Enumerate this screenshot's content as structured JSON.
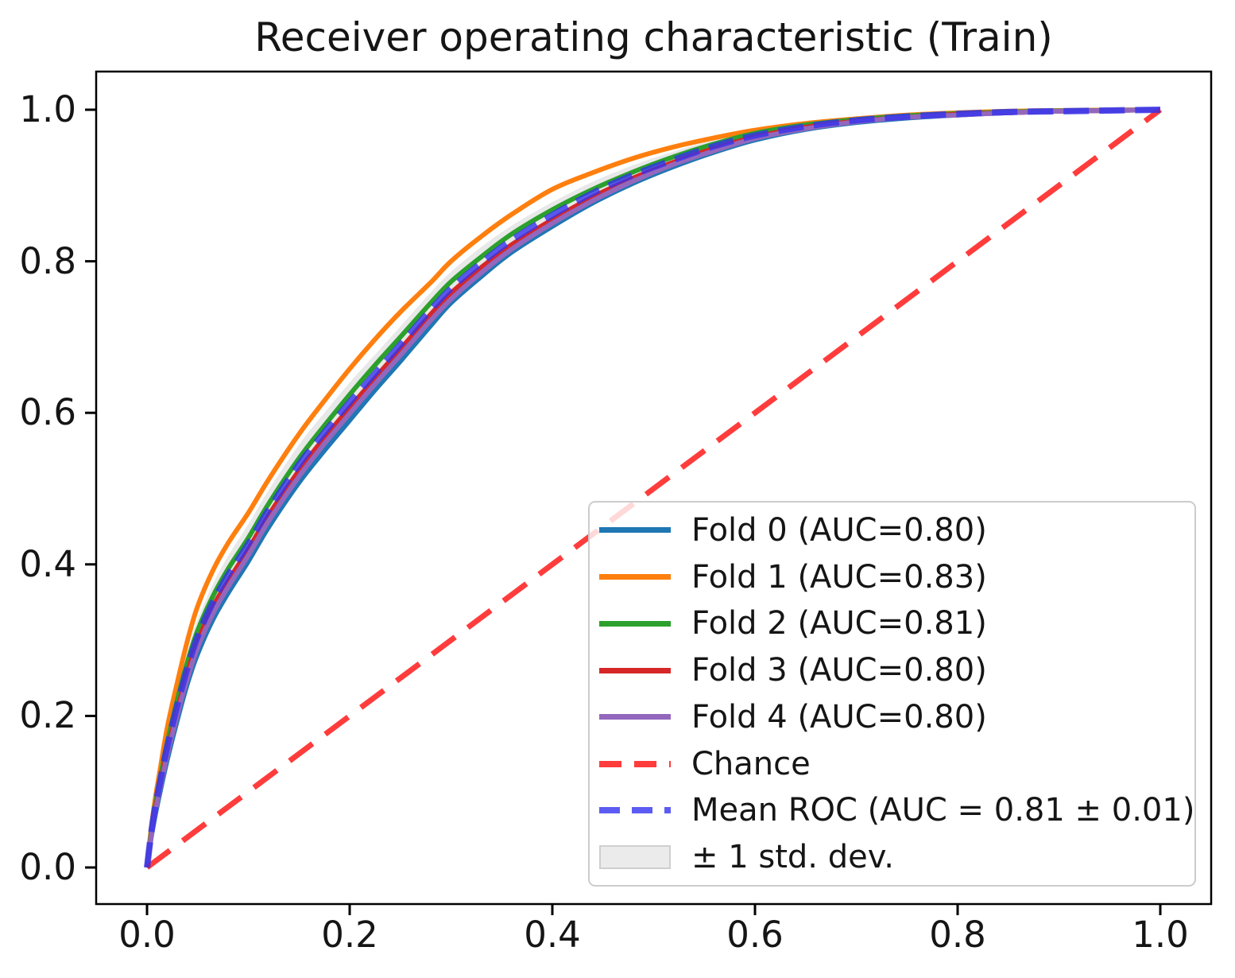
{
  "title": "Receiver operating characteristic (Train)",
  "axes": {
    "x_tick_values": [
      0.0,
      0.2,
      0.4,
      0.6,
      0.8,
      1.0
    ],
    "x_tick_labels": [
      "0.0",
      "0.2",
      "0.4",
      "0.6",
      "0.8",
      "1.0"
    ],
    "y_tick_values": [
      0.0,
      0.2,
      0.4,
      0.6,
      0.8,
      1.0
    ],
    "y_tick_labels": [
      "0.0",
      "0.2",
      "0.4",
      "0.6",
      "0.8",
      "1.0"
    ],
    "grid": false
  },
  "chart_data": {
    "type": "line",
    "title": "Receiver operating characteristic (Train)",
    "xlim": [
      -0.05,
      1.05
    ],
    "ylim": [
      -0.05,
      1.05
    ],
    "legend_position": "lower right",
    "x": [
      0,
      0.004,
      0.008,
      0.013,
      0.02,
      0.03,
      0.04,
      0.05,
      0.065,
      0.08,
      0.1,
      0.12,
      0.15,
      0.175,
      0.2,
      0.225,
      0.25,
      0.28,
      0.3,
      0.33,
      0.36,
      0.4,
      0.44,
      0.48,
      0.52,
      0.56,
      0.6,
      0.65,
      0.7,
      0.75,
      0.8,
      0.85,
      0.9,
      0.95,
      1.0
    ],
    "series": [
      {
        "name": "Fold 0 (AUC=0.80)",
        "auc": 0.8,
        "color": "#1f77b4",
        "style": "solid",
        "lw": 6,
        "opacity": 1,
        "y": [
          0,
          0.038,
          0.068,
          0.1,
          0.142,
          0.195,
          0.243,
          0.282,
          0.327,
          0.362,
          0.404,
          0.449,
          0.508,
          0.55,
          0.59,
          0.63,
          0.668,
          0.715,
          0.745,
          0.78,
          0.812,
          0.846,
          0.877,
          0.903,
          0.925,
          0.944,
          0.96,
          0.974,
          0.983,
          0.989,
          0.993,
          0.996,
          0.998,
          0.999,
          1.0
        ]
      },
      {
        "name": "Fold 1 (AUC=0.83)",
        "auc": 0.83,
        "color": "#ff7f0e",
        "style": "solid",
        "lw": 6,
        "opacity": 1,
        "y": [
          0,
          0.05,
          0.09,
          0.13,
          0.185,
          0.245,
          0.3,
          0.345,
          0.392,
          0.428,
          0.468,
          0.512,
          0.572,
          0.616,
          0.658,
          0.697,
          0.733,
          0.772,
          0.8,
          0.833,
          0.862,
          0.895,
          0.917,
          0.936,
          0.951,
          0.963,
          0.973,
          0.982,
          0.988,
          0.993,
          0.996,
          0.998,
          0.999,
          0.9995,
          1.0
        ]
      },
      {
        "name": "Fold 2 (AUC=0.81)",
        "auc": 0.81,
        "color": "#2ca02c",
        "style": "solid",
        "lw": 6,
        "opacity": 1,
        "y": [
          0,
          0.046,
          0.082,
          0.118,
          0.165,
          0.222,
          0.272,
          0.313,
          0.358,
          0.394,
          0.435,
          0.48,
          0.54,
          0.583,
          0.624,
          0.663,
          0.7,
          0.745,
          0.773,
          0.806,
          0.836,
          0.868,
          0.895,
          0.918,
          0.938,
          0.955,
          0.969,
          0.98,
          0.987,
          0.992,
          0.995,
          0.997,
          0.9985,
          0.9993,
          1.0
        ]
      },
      {
        "name": "Fold 3 (AUC=0.80)",
        "auc": 0.8,
        "color": "#d62728",
        "style": "solid",
        "lw": 6,
        "opacity": 1,
        "y": [
          0,
          0.042,
          0.076,
          0.11,
          0.154,
          0.208,
          0.258,
          0.298,
          0.344,
          0.378,
          0.42,
          0.465,
          0.524,
          0.567,
          0.607,
          0.646,
          0.684,
          0.73,
          0.758,
          0.792,
          0.822,
          0.855,
          0.885,
          0.91,
          0.931,
          0.949,
          0.964,
          0.977,
          0.985,
          0.99,
          0.994,
          0.996,
          0.998,
          0.999,
          1.0
        ]
      },
      {
        "name": "Fold 4 (AUC=0.80)",
        "auc": 0.8,
        "color": "#9467bd",
        "style": "solid",
        "lw": 6,
        "opacity": 1,
        "y": [
          0,
          0.04,
          0.072,
          0.105,
          0.148,
          0.202,
          0.25,
          0.29,
          0.335,
          0.37,
          0.412,
          0.457,
          0.516,
          0.559,
          0.599,
          0.638,
          0.676,
          0.722,
          0.75,
          0.785,
          0.816,
          0.85,
          0.88,
          0.906,
          0.928,
          0.946,
          0.962,
          0.975,
          0.984,
          0.99,
          0.993,
          0.996,
          0.998,
          0.999,
          1.0
        ]
      },
      {
        "name": "Chance",
        "color": "#ff1a1a",
        "style": "dashed",
        "lw": 7,
        "opacity": 0.85,
        "dasharray": "36 20",
        "x": [
          0,
          1
        ],
        "y": [
          0,
          1
        ]
      },
      {
        "name": "Mean ROC (AUC = 0.81 ± 0.01)",
        "auc": 0.81,
        "auc_std": 0.01,
        "color": "#3333ee",
        "style": "dashed",
        "lw": 8,
        "opacity": 0.8,
        "dasharray": "32 13",
        "y": [
          0,
          0.044,
          0.079,
          0.114,
          0.16,
          0.215,
          0.264,
          0.305,
          0.35,
          0.386,
          0.427,
          0.472,
          0.532,
          0.574,
          0.614,
          0.652,
          0.69,
          0.736,
          0.764,
          0.798,
          0.828,
          0.861,
          0.89,
          0.914,
          0.934,
          0.952,
          0.966,
          0.978,
          0.986,
          0.991,
          0.9945,
          0.997,
          0.998,
          0.999,
          1.0
        ]
      }
    ],
    "band": {
      "name": "± 1 std. dev.",
      "color": "#808080",
      "opacity": 0.18,
      "legend_fill": "#ebebeb",
      "legend_edge": "#cfcfcf",
      "std": [
        0,
        0.006,
        0.009,
        0.013,
        0.016,
        0.019,
        0.021,
        0.023,
        0.024,
        0.025,
        0.026,
        0.026,
        0.026,
        0.026,
        0.026,
        0.025,
        0.024,
        0.023,
        0.022,
        0.021,
        0.019,
        0.017,
        0.015,
        0.013,
        0.011,
        0.009,
        0.008,
        0.006,
        0.005,
        0.004,
        0.003,
        0.002,
        0.002,
        0.001,
        0
      ]
    }
  }
}
